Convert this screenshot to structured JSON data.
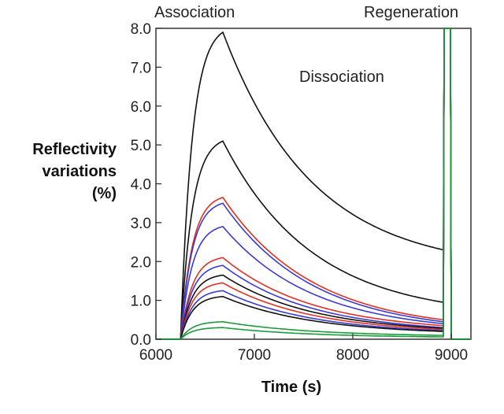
{
  "chart_data": {
    "type": "line",
    "title": "",
    "xlabel": "Time (s)",
    "ylabel_lines": [
      "Reflectivity",
      "variations",
      "(%)"
    ],
    "xlim": [
      6000,
      9200
    ],
    "ylim": [
      0,
      8
    ],
    "x_ticks": [
      6000,
      7000,
      8000,
      9000
    ],
    "x_tick_labels": [
      "6000",
      "7000",
      "8000",
      "9000"
    ],
    "y_ticks": [
      0,
      1,
      2,
      3,
      4,
      5,
      6,
      7,
      8
    ],
    "y_tick_labels": [
      "0.0",
      "1.0",
      "2.0",
      "3.0",
      "4.0",
      "5.0",
      "6.0",
      "7.0",
      "8.0"
    ],
    "grid": false,
    "legend": "none",
    "annotations": [
      "Association",
      "Dissociation",
      "Regeneration"
    ],
    "phases": {
      "baseline_end": 6250,
      "association_end": 6680,
      "dissociation_end": 8920,
      "regeneration_end": 9000,
      "regeneration_peak": 8.0
    },
    "series": [
      {
        "color": "#111111",
        "assoc_peak": 7.9,
        "dissoc_end": 2.3
      },
      {
        "color": "#111111",
        "assoc_peak": 5.1,
        "dissoc_end": 0.95
      },
      {
        "color": "#e03020",
        "assoc_peak": 3.65,
        "dissoc_end": 0.5
      },
      {
        "color": "#3a3ad0",
        "assoc_peak": 3.5,
        "dissoc_end": 0.45
      },
      {
        "color": "#3a3ad0",
        "assoc_peak": 2.9,
        "dissoc_end": 0.4
      },
      {
        "color": "#e03020",
        "assoc_peak": 2.1,
        "dissoc_end": 0.35
      },
      {
        "color": "#3a3ad0",
        "assoc_peak": 1.9,
        "dissoc_end": 0.3
      },
      {
        "color": "#111111",
        "assoc_peak": 1.65,
        "dissoc_end": 0.28
      },
      {
        "color": "#e03020",
        "assoc_peak": 1.45,
        "dissoc_end": 0.25
      },
      {
        "color": "#3a3ad0",
        "assoc_peak": 1.25,
        "dissoc_end": 0.22
      },
      {
        "color": "#111111",
        "assoc_peak": 1.1,
        "dissoc_end": 0.2
      },
      {
        "color": "#1a9a3a",
        "assoc_peak": 0.45,
        "dissoc_end": 0.1
      },
      {
        "color": "#1a9a3a",
        "assoc_peak": 0.3,
        "dissoc_end": 0.06
      }
    ]
  }
}
